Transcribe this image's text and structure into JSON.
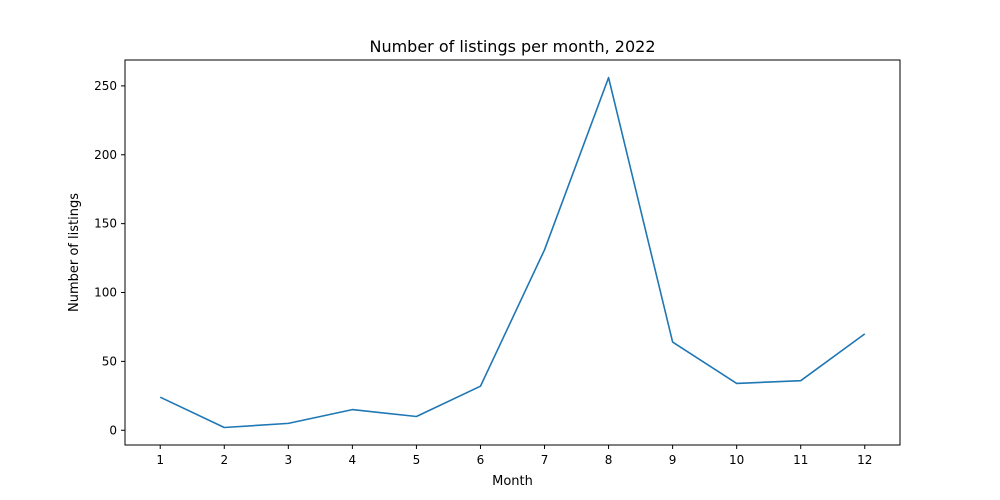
{
  "chart_data": {
    "type": "line",
    "title": "Number of listings per month, 2022",
    "xlabel": "Month",
    "ylabel": "Number of listings",
    "x": [
      1,
      2,
      3,
      4,
      5,
      6,
      7,
      8,
      9,
      10,
      11,
      12
    ],
    "series": [
      {
        "values": [
          24,
          2,
          5,
          15,
          10,
          32,
          131,
          256,
          64,
          34,
          36,
          70
        ],
        "color": "#1f77b4"
      }
    ],
    "x_ticks": [
      1,
      2,
      3,
      4,
      5,
      6,
      7,
      8,
      9,
      10,
      11,
      12
    ],
    "y_ticks": [
      0,
      50,
      100,
      150,
      200,
      250
    ],
    "xlim": [
      0.45,
      12.55
    ],
    "ylim": [
      -10.7,
      268.8
    ],
    "grid": false,
    "legend": "none"
  }
}
